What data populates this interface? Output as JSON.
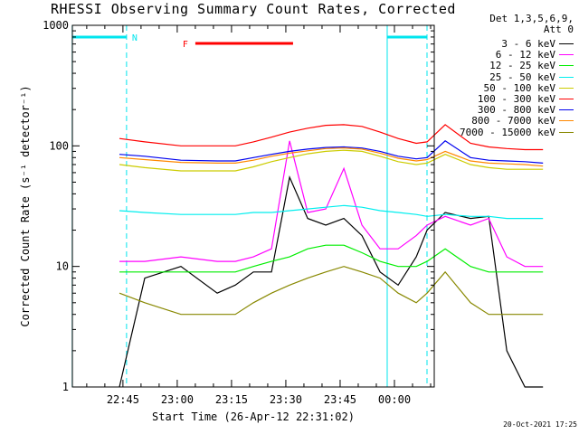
{
  "title": "RHESSI Observing Summary Count Rates, Corrected",
  "detector_info": "Det 1,3,5,6,9,",
  "attenuator_info": "Att 0",
  "timestamp": "20-Oct-2021 17:25",
  "colors": {
    "axis": "#000000",
    "night_marker": "#00e5ee",
    "flare_marker": "#ff0000"
  },
  "chart_data": {
    "type": "line",
    "title": "RHESSI Observing Summary Count Rates, Corrected",
    "xlabel": "Start Time (26-Apr-12 22:31:02)",
    "ylabel": "Corrected Count Rate (s⁻¹ detector⁻¹)",
    "y_scale": "log",
    "ylim": [
      1,
      1000
    ],
    "xlim": [
      "22:31:02",
      "00:11:00"
    ],
    "x_ticks": [
      "22:45",
      "23:00",
      "23:15",
      "23:30",
      "23:45",
      "00:00"
    ],
    "y_ticks": [
      "1",
      "10",
      "100",
      "1000"
    ],
    "legend_position": "right",
    "annotations": [
      {
        "label": "N",
        "type": "night",
        "from": "22:31",
        "to": "22:46",
        "color": "#00e5ee"
      },
      {
        "label": "",
        "type": "night",
        "from": "23:58",
        "to": "00:09",
        "color": "#00e5ee"
      },
      {
        "label": "F",
        "type": "flare",
        "from": "23:05",
        "to": "23:32",
        "color": "#ff0000"
      }
    ],
    "x_minutes": [
      13,
      20,
      30,
      40,
      45,
      50,
      55,
      60,
      65,
      70,
      75,
      80,
      85,
      90,
      95,
      98,
      103,
      110,
      115,
      120,
      125,
      130
    ],
    "series": [
      {
        "name": "3 - 6 keV",
        "color": "#000000",
        "values": [
          1,
          8,
          10,
          6,
          7,
          9,
          9,
          55,
          25,
          22,
          25,
          18,
          9,
          7,
          12,
          20,
          28,
          25,
          26,
          2,
          1,
          1
        ]
      },
      {
        "name": "6 - 12 keV",
        "color": "#ff00ff",
        "values": [
          11,
          11,
          12,
          11,
          11,
          12,
          14,
          110,
          28,
          30,
          65,
          22,
          14,
          14,
          18,
          22,
          26,
          22,
          25,
          12,
          10,
          10
        ]
      },
      {
        "name": "12 - 25 keV",
        "color": "#00ee00",
        "values": [
          9,
          9,
          9,
          9,
          9,
          10,
          11,
          12,
          14,
          15,
          15,
          13,
          11,
          10,
          10,
          11,
          14,
          10,
          9,
          9,
          9,
          9
        ]
      },
      {
        "name": "25 - 50 keV",
        "color": "#00eeee",
        "values": [
          29,
          28,
          27,
          27,
          27,
          28,
          28,
          29,
          30,
          31,
          32,
          31,
          29,
          28,
          27,
          26,
          27,
          26,
          26,
          25,
          25,
          25
        ]
      },
      {
        "name": "50 - 100 keV",
        "color": "#cccc00",
        "values": [
          70,
          66,
          62,
          62,
          62,
          67,
          74,
          80,
          86,
          90,
          92,
          90,
          82,
          74,
          70,
          72,
          85,
          70,
          66,
          64,
          64,
          64
        ]
      },
      {
        "name": "100 - 300 keV",
        "color": "#ff0000",
        "values": [
          115,
          108,
          100,
          100,
          100,
          108,
          118,
          130,
          140,
          148,
          150,
          145,
          130,
          115,
          105,
          108,
          150,
          105,
          98,
          95,
          93,
          93
        ]
      },
      {
        "name": "300 - 800 keV",
        "color": "#0000ee",
        "values": [
          85,
          82,
          76,
          75,
          75,
          80,
          85,
          90,
          94,
          97,
          98,
          96,
          90,
          82,
          78,
          80,
          110,
          80,
          76,
          75,
          74,
          72
        ]
      },
      {
        "name": "800 - 7000 keV",
        "color": "#ff8800",
        "values": [
          80,
          77,
          73,
          72,
          72,
          76,
          82,
          87,
          91,
          95,
          96,
          94,
          87,
          79,
          75,
          77,
          90,
          75,
          72,
          71,
          70,
          68
        ]
      },
      {
        "name": "7000 - 15000 keV",
        "color": "#888800",
        "values": [
          6,
          5,
          4,
          4,
          4,
          5,
          6,
          7,
          8,
          9,
          10,
          9,
          8,
          6,
          5,
          6,
          9,
          5,
          4,
          4,
          4,
          4
        ]
      }
    ]
  }
}
